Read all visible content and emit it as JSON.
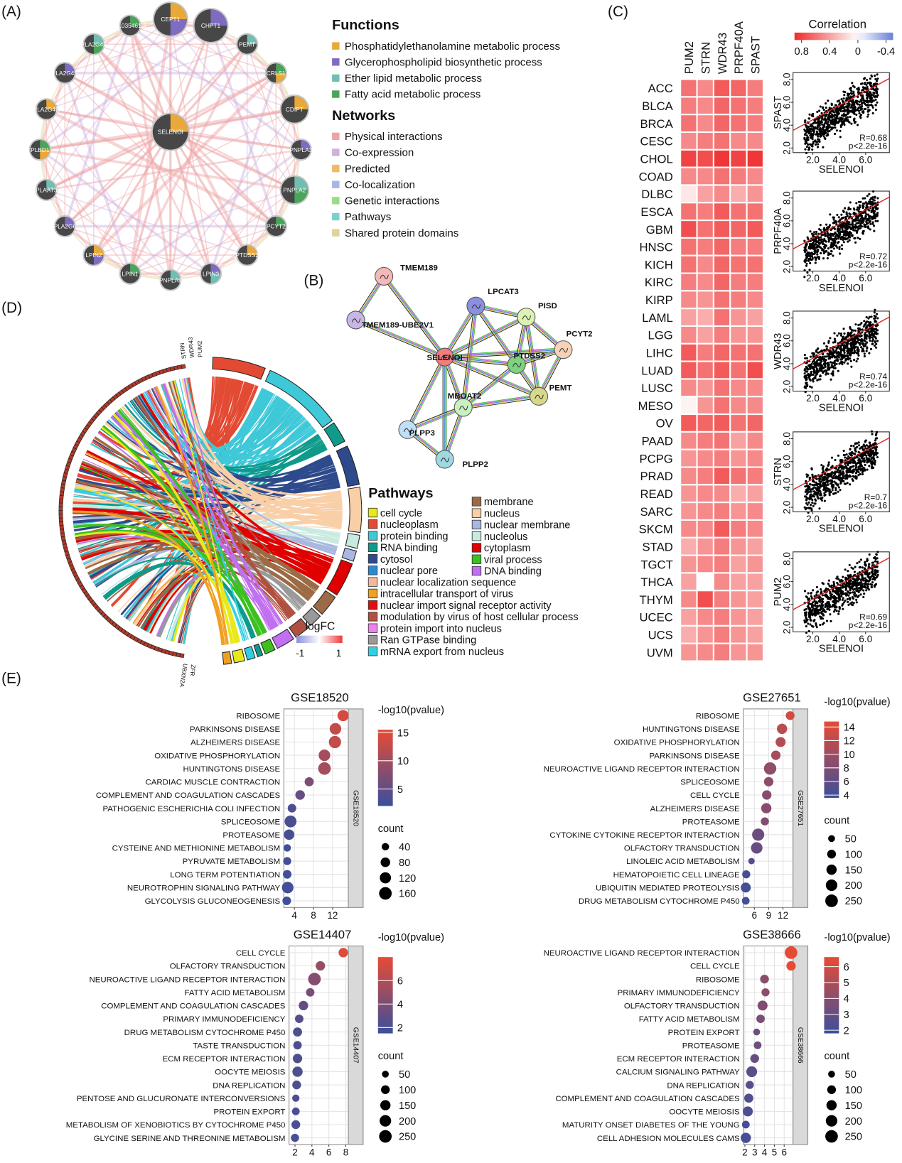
{
  "panel_labels": [
    "(A)",
    "(B)",
    "(C)",
    "(D)",
    "(E)"
  ],
  "network_a": {
    "nodes": [
      "CEPT1",
      "CHPT1",
      "PEMT",
      "CRLS1",
      "CDIPT",
      "PNPLA3",
      "PNPLA2",
      "PCYT2",
      "PTDSS2",
      "LPIN3",
      "PNPLA8",
      "LPIN1",
      "LPIN2",
      "PLA2G6",
      "PLAAT3",
      "PLBD1",
      "PLA2G4C",
      "PLA2G4E",
      "PLA2G4F",
      "AL035461.3",
      "SELENOI"
    ],
    "functions_title": "Functions",
    "functions": [
      {
        "label": "Phosphatidylethanolamine metabolic process",
        "color": "#e9a93a"
      },
      {
        "label": "Glycerophospholipid biosynthetic process",
        "color": "#7f6bc0"
      },
      {
        "label": "Ether lipid metabolic process",
        "color": "#6fbfb2"
      },
      {
        "label": "Fatty acid metabolic process",
        "color": "#4aa55a"
      }
    ],
    "networks_title": "Networks",
    "networks": [
      {
        "label": "Physical interactions",
        "color": "#eea4a6"
      },
      {
        "label": "Co-expression",
        "color": "#cfb0de"
      },
      {
        "label": "Predicted",
        "color": "#f4b860"
      },
      {
        "label": "Co-localization",
        "color": "#a7b6e3"
      },
      {
        "label": "Genetic interactions",
        "color": "#9adb8a"
      },
      {
        "label": "Pathways",
        "color": "#7ccfd0"
      },
      {
        "label": "Shared protein domains",
        "color": "#dcd49a"
      }
    ]
  },
  "network_b": {
    "nodes": [
      {
        "label": "TMEM189",
        "color": "#f4b8b8"
      },
      {
        "label": "TMEM189-UBE2V1",
        "color": "#c9b6e8"
      },
      {
        "label": "LPCAT3",
        "color": "#8a8fe0"
      },
      {
        "label": "PISD",
        "color": "#dcf2b4"
      },
      {
        "label": "PCYT2",
        "color": "#f7d2b8"
      },
      {
        "label": "SELENOI",
        "color": "#f47c7c"
      },
      {
        "label": "PTDSS2",
        "color": "#7ed17e"
      },
      {
        "label": "PEMT",
        "color": "#d8d88a"
      },
      {
        "label": "MBOAT2",
        "color": "#c8f0c0"
      },
      {
        "label": "PLPP3",
        "color": "#bfe0f8"
      },
      {
        "label": "PLPP2",
        "color": "#9fd8e0"
      }
    ]
  },
  "chord_d": {
    "genes": [
      "PUM2",
      "WDR43",
      "STRN",
      "ZFR",
      "UBXN2A"
    ],
    "legend_title": "Pathways",
    "pathways": [
      {
        "label": "cell cycle",
        "color": "#e8e81a"
      },
      {
        "label": "nucleoplasm",
        "color": "#e34a33"
      },
      {
        "label": "protein binding",
        "color": "#3ec8d8"
      },
      {
        "label": "RNA binding",
        "color": "#0f9a8a"
      },
      {
        "label": "cytosol",
        "color": "#2e4a8c"
      },
      {
        "label": "nuclear pore",
        "color": "#2a8ad0"
      },
      {
        "label": "nuclear localization sequence",
        "color": "#f4b89a"
      },
      {
        "label": "intracellular transport of virus",
        "color": "#f0a020"
      },
      {
        "label": "nuclear import signal receptor activity",
        "color": "#e01010"
      },
      {
        "label": "modulation by virus of host cellular process",
        "color": "#b05040"
      },
      {
        "label": "protein import into nucleus",
        "color": "#f080f0"
      },
      {
        "label": "Ran GTPase binding",
        "color": "#999999"
      },
      {
        "label": "mRNA export from nucleus",
        "color": "#30d0e0"
      },
      {
        "label": "membrane",
        "color": "#9c6a44"
      },
      {
        "label": "nucleus",
        "color": "#f9cfa8"
      },
      {
        "label": "nuclear membrane",
        "color": "#a8b8e0"
      },
      {
        "label": "nucleolus",
        "color": "#c8eae0"
      },
      {
        "label": "cytoplasm",
        "color": "#e00000"
      },
      {
        "label": "viral process",
        "color": "#3cc020"
      },
      {
        "label": "DNA binding",
        "color": "#c070f0"
      }
    ],
    "logfc_title": "logFC",
    "logfc_ticks": [
      -1,
      1
    ],
    "logfc_colors": [
      "#8a90d8",
      "#ffffff",
      "#ee3b3b"
    ]
  },
  "chart_data": [
    {
      "type": "heatmap",
      "columns": [
        "PUM2",
        "STRN",
        "WDR43",
        "PRPF40A",
        "SPAST"
      ],
      "rows": [
        "ACC",
        "BLCA",
        "BRCA",
        "CESC",
        "CHOL",
        "COAD",
        "DLBC",
        "ESCA",
        "GBM",
        "HNSC",
        "KICH",
        "KIRC",
        "KIRP",
        "LAML",
        "LGG",
        "LIHC",
        "LUAD",
        "LUSC",
        "MESO",
        "OV",
        "PAAD",
        "PCPG",
        "PRAD",
        "READ",
        "SARC",
        "SKCM",
        "STAD",
        "TGCT",
        "THCA",
        "THYM",
        "UCEC",
        "UCS",
        "UVM"
      ],
      "values": [
        [
          0.6,
          0.5,
          0.7,
          0.65,
          0.55
        ],
        [
          0.55,
          0.5,
          0.65,
          0.6,
          0.55
        ],
        [
          0.6,
          0.5,
          0.65,
          0.6,
          0.55
        ],
        [
          0.5,
          0.55,
          0.6,
          0.5,
          0.5
        ],
        [
          0.8,
          0.75,
          0.85,
          0.8,
          0.85
        ],
        [
          0.5,
          0.5,
          0.6,
          0.55,
          0.5
        ],
        [
          0.1,
          0.4,
          0.5,
          0.35,
          0.45
        ],
        [
          0.6,
          0.55,
          0.7,
          0.6,
          0.6
        ],
        [
          0.75,
          0.6,
          0.7,
          0.65,
          0.7
        ],
        [
          0.6,
          0.55,
          0.65,
          0.55,
          0.55
        ],
        [
          0.6,
          0.5,
          0.65,
          0.6,
          0.6
        ],
        [
          0.55,
          0.5,
          0.65,
          0.55,
          0.55
        ],
        [
          0.5,
          0.45,
          0.6,
          0.55,
          0.5
        ],
        [
          0.4,
          0.35,
          0.6,
          0.45,
          0.4
        ],
        [
          0.5,
          0.4,
          0.55,
          0.45,
          0.45
        ],
        [
          0.7,
          0.55,
          0.65,
          0.6,
          0.6
        ],
        [
          0.7,
          0.6,
          0.7,
          0.6,
          0.75
        ],
        [
          0.5,
          0.45,
          0.6,
          0.5,
          0.5
        ],
        [
          0.05,
          0.45,
          0.6,
          0.5,
          0.5
        ],
        [
          0.7,
          0.65,
          0.7,
          0.6,
          0.65
        ],
        [
          0.5,
          0.55,
          0.6,
          0.4,
          0.5
        ],
        [
          0.45,
          0.5,
          0.55,
          0.45,
          0.5
        ],
        [
          0.5,
          0.55,
          0.7,
          0.6,
          0.55
        ],
        [
          0.45,
          0.5,
          0.5,
          0.35,
          0.4
        ],
        [
          0.45,
          0.5,
          0.55,
          0.45,
          0.5
        ],
        [
          0.5,
          0.5,
          0.7,
          0.55,
          0.5
        ],
        [
          0.35,
          0.45,
          0.55,
          0.45,
          0.4
        ],
        [
          0.45,
          0.5,
          0.55,
          0.4,
          0.45
        ],
        [
          0.4,
          0,
          0.5,
          0.4,
          0.4
        ],
        [
          0.5,
          0.75,
          0.55,
          0.45,
          0.4
        ],
        [
          0.4,
          0.5,
          0.55,
          0.45,
          0.4
        ],
        [
          0.35,
          0.45,
          0.55,
          0.45,
          0.4
        ],
        [
          0.45,
          0.5,
          0.55,
          0.45,
          0.45
        ]
      ],
      "legend_title": "Correlation",
      "clim": [
        -0.5,
        0.9
      ],
      "cticks": [
        0.8,
        0.4,
        0,
        -0.4
      ],
      "colors": [
        "#6b7fd7",
        "#ffffff",
        "#ef2b2b"
      ]
    },
    {
      "type": "scatter",
      "x_label": "SELENOI",
      "y_label": "SPAST",
      "annotations": [
        "R=0.68",
        "p<2.2e-16"
      ],
      "xlim": [
        0.5,
        7.8
      ],
      "ylim": [
        1.6,
        8.6
      ],
      "xticks": [
        {
          "value": 2,
          "label": "2.0"
        },
        {
          "value": 4,
          "label": "4.0"
        },
        {
          "value": 6,
          "label": "6.0"
        }
      ],
      "yticks": [
        {
          "value": 2,
          "label": "2.0"
        },
        {
          "value": 4,
          "label": "4.0"
        },
        {
          "value": 6,
          "label": "6.0"
        },
        {
          "value": 8,
          "label": "8.0"
        }
      ]
    },
    {
      "type": "scatter",
      "x_label": "SELENOI",
      "y_label": "PRPF40A",
      "annotations": [
        "R=0.72",
        "p<2.2e-16"
      ],
      "xlim": [
        0.5,
        7.8
      ],
      "ylim": [
        1.6,
        8.6
      ],
      "xticks": [
        {
          "value": 2,
          "label": "2.0"
        },
        {
          "value": 4,
          "label": "4.0"
        },
        {
          "value": 6,
          "label": "6.0"
        }
      ],
      "yticks": [
        {
          "value": 2,
          "label": "2.0"
        },
        {
          "value": 4,
          "label": "4.0"
        },
        {
          "value": 6,
          "label": "6.0"
        },
        {
          "value": 8,
          "label": "8.0"
        }
      ]
    },
    {
      "type": "scatter",
      "x_label": "SELENOI",
      "y_label": "WDR43",
      "annotations": [
        "R=0.74",
        "p<2.2e-16"
      ],
      "xlim": [
        0.5,
        7.8
      ],
      "ylim": [
        1.6,
        8.6
      ],
      "xticks": [
        {
          "value": 2,
          "label": "2.0"
        },
        {
          "value": 4,
          "label": "4.0"
        },
        {
          "value": 6,
          "label": "6.0"
        }
      ],
      "yticks": [
        {
          "value": 2,
          "label": "2.0"
        },
        {
          "value": 4,
          "label": "4.0"
        },
        {
          "value": 6,
          "label": "6.0"
        },
        {
          "value": 8,
          "label": "8.0"
        }
      ]
    },
    {
      "type": "scatter",
      "x_label": "SELENOI",
      "y_label": "STRN",
      "annotations": [
        "R=0.7",
        "p<2.2e-16"
      ],
      "xlim": [
        0.5,
        7.8
      ],
      "ylim": [
        1.6,
        8.6
      ],
      "xticks": [
        {
          "value": 2,
          "label": "2.0"
        },
        {
          "value": 4,
          "label": "4.0"
        },
        {
          "value": 6,
          "label": "6.0"
        }
      ],
      "yticks": [
        {
          "value": 2,
          "label": "2.0"
        },
        {
          "value": 4,
          "label": "4.0"
        },
        {
          "value": 6,
          "label": "6.0"
        },
        {
          "value": 8,
          "label": "8.0"
        }
      ]
    },
    {
      "type": "scatter",
      "x_label": "SELENOI",
      "y_label": "PUM2",
      "annotations": [
        "R=0.69",
        "p<2.2e-16"
      ],
      "xlim": [
        0.5,
        7.8
      ],
      "ylim": [
        1.6,
        8.6
      ],
      "xticks": [
        {
          "value": 2,
          "label": "2.0"
        },
        {
          "value": 4,
          "label": "4.0"
        },
        {
          "value": 6,
          "label": "6.0"
        }
      ],
      "yticks": [
        {
          "value": 2,
          "label": "2.0"
        },
        {
          "value": 4,
          "label": "4.0"
        },
        {
          "value": 6,
          "label": "6.0"
        },
        {
          "value": 8,
          "label": "8.0"
        }
      ]
    },
    {
      "type": "dotplot",
      "title": "GSE18520",
      "strip": "GSE18520",
      "categories": [
        "RIBOSOME",
        "PARKINSONS DISEASE",
        "ALZHEIMERS DISEASE",
        "OXIDATIVE PHOSPHORYLATION",
        "HUNTINGTONS DISEASE",
        "CARDIAC MUSCLE CONTRACTION",
        "COMPLEMENT AND COAGULATION CASCADES",
        "PATHOGENIC ESCHERICHIA COLI INFECTION",
        "SPLICEOSOME",
        "PROTEASOME",
        "CYSTEINE AND METHIONINE METABOLISM",
        "PYRUVATE METABOLISM",
        "LONG TERM POTENTIATION",
        "NEUROTROPHIN SIGNALING PATHWAY",
        "GLYCOLYSIS GLUCONEOGENESIS"
      ],
      "values": [
        14.2,
        12.6,
        12.5,
        10.3,
        10.3,
        7.1,
        5.2,
        3.5,
        3.2,
        2.9,
        2.5,
        2.5,
        2.5,
        2.6,
        2.4
      ],
      "counts": [
        120,
        130,
        150,
        130,
        160,
        70,
        80,
        60,
        140,
        100,
        40,
        50,
        60,
        130,
        60
      ],
      "xlim": [
        1.8,
        15.3
      ],
      "xticks": [
        4,
        8,
        12
      ],
      "color_title": "-log10(pvalue)",
      "clim": [
        2,
        15.5
      ],
      "cticks": [
        5,
        10,
        15
      ],
      "colors": [
        "#3b4f9b",
        "#e64b35"
      ],
      "size_title": "count",
      "size_ticks": [
        40,
        80,
        120,
        160
      ]
    },
    {
      "type": "dotplot",
      "title": "GSE27651",
      "strip": "GSE27651",
      "categories": [
        "RIBOSOME",
        "HUNTINGTONS DISEASE",
        "OXIDATIVE PHOSPHORYLATION",
        "PARKINSONS DISEASE",
        "NEUROACTIVE LIGAND RECEPTOR INTERACTION",
        "SPLICEOSOME",
        "CELL CYCLE",
        "ALZHEIMERS DISEASE",
        "PROTEASOME",
        "CYTOKINE CYTOKINE RECEPTOR INTERACTION",
        "OLFACTORY TRANSDUCTION",
        "LINOLEIC ACID METABOLISM",
        "HEMATOPOIETIC CELL LINEAGE",
        "UBIQUITIN MEDIATED PROTEOLYSIS",
        "DRUG METABOLISM CYTOCHROME P450"
      ],
      "values": [
        13.5,
        11.8,
        11.5,
        10.5,
        9.3,
        9.0,
        8.6,
        8.5,
        8.2,
        6.8,
        6.5,
        5.4,
        4.3,
        4.2,
        4.2
      ],
      "counts": [
        100,
        150,
        140,
        120,
        240,
        120,
        120,
        150,
        80,
        230,
        200,
        40,
        80,
        140,
        70
      ],
      "xlim": [
        3.7,
        14.1
      ],
      "xticks": [
        6,
        9,
        12
      ],
      "color_title": "-log10(pvalue)",
      "clim": [
        3.6,
        14.8
      ],
      "cticks": [
        4,
        6,
        8,
        10,
        12,
        14
      ],
      "colors": [
        "#3b4f9b",
        "#e64b35"
      ],
      "size_title": "count",
      "size_ticks": [
        50,
        100,
        150,
        200,
        250
      ]
    },
    {
      "type": "dotplot",
      "title": "GSE14407",
      "strip": "GSE14407",
      "categories": [
        "CELL CYCLE",
        "OLFACTORY TRANSDUCTION",
        "NEUROACTIVE LIGAND RECEPTOR INTERACTION",
        "FATTY ACID METABOLISM",
        "COMPLEMENT AND COAGULATION CASCADES",
        "PRIMARY IMMUNODEFICIENCY",
        "DRUG METABOLISM CYTOCHROME P450",
        "TASTE TRANSDUCTION",
        "ECM RECEPTOR INTERACTION",
        "OOCYTE MEIOSIS",
        "DNA REPLICATION",
        "PENTOSE AND GLUCURONATE INTERCONVERSIONS",
        "PROTEIN EXPORT",
        "METABOLISM OF XENOBIOTICS BY CYTOCHROME P450",
        "GLYCINE SERINE AND THREONINE METABOLISM"
      ],
      "values": [
        7.7,
        5.0,
        4.3,
        3.8,
        3.0,
        2.5,
        2.3,
        2.3,
        2.3,
        2.3,
        2.2,
        2.1,
        2.1,
        2.1,
        2.0
      ],
      "counts": [
        120,
        120,
        250,
        90,
        120,
        90,
        110,
        90,
        120,
        150,
        100,
        60,
        70,
        100,
        80
      ],
      "xlim": [
        1.3,
        8.3
      ],
      "xticks": [
        2,
        4,
        6,
        8
      ],
      "color_title": "-log10(pvalue)",
      "clim": [
        1.5,
        8
      ],
      "cticks": [
        2,
        4,
        6
      ],
      "colors": [
        "#3b4f9b",
        "#e64b35"
      ],
      "size_title": "count",
      "size_ticks": [
        50,
        100,
        150,
        200,
        250
      ]
    },
    {
      "type": "dotplot",
      "title": "GSE38666",
      "strip": "GSE38666",
      "categories": [
        "NEUROACTIVE LIGAND RECEPTOR INTERACTION",
        "CELL CYCLE",
        "RIBOSOME",
        "PRIMARY IMMUNODEFICIENCY",
        "OLFACTORY TRANSDUCTION",
        "FATTY ACID METABOLISM",
        "PROTEIN EXPORT",
        "PROTEASOME",
        "ECM RECEPTOR INTERACTION",
        "CALCIUM SIGNALING PATHWAY",
        "DNA REPLICATION",
        "COMPLEMENT AND COAGULATION CASCADES",
        "OOCYTE MEIOSIS",
        "MATURITY ONSET DIABETES OF THE YOUNG",
        "CELL ADHESION MOLECULES CAMS"
      ],
      "values": [
        6.7,
        6.7,
        4.0,
        4.1,
        3.8,
        3.6,
        3.2,
        3.3,
        3.0,
        2.7,
        2.5,
        2.4,
        2.3,
        2.1,
        2.1
      ],
      "counts": [
        250,
        120,
        100,
        80,
        140,
        90,
        50,
        70,
        100,
        170,
        80,
        110,
        140,
        70,
        150
      ],
      "xlim": [
        1.85,
        6.9
      ],
      "xticks": [
        2,
        3,
        4,
        5,
        6
      ],
      "color_title": "-log10(pvalue)",
      "clim": [
        1.8,
        6.6
      ],
      "cticks": [
        2,
        3,
        4,
        5,
        6
      ],
      "colors": [
        "#3b4f9b",
        "#e64b35"
      ],
      "size_title": "count",
      "size_ticks": [
        50,
        100,
        150,
        200,
        250
      ]
    }
  ]
}
